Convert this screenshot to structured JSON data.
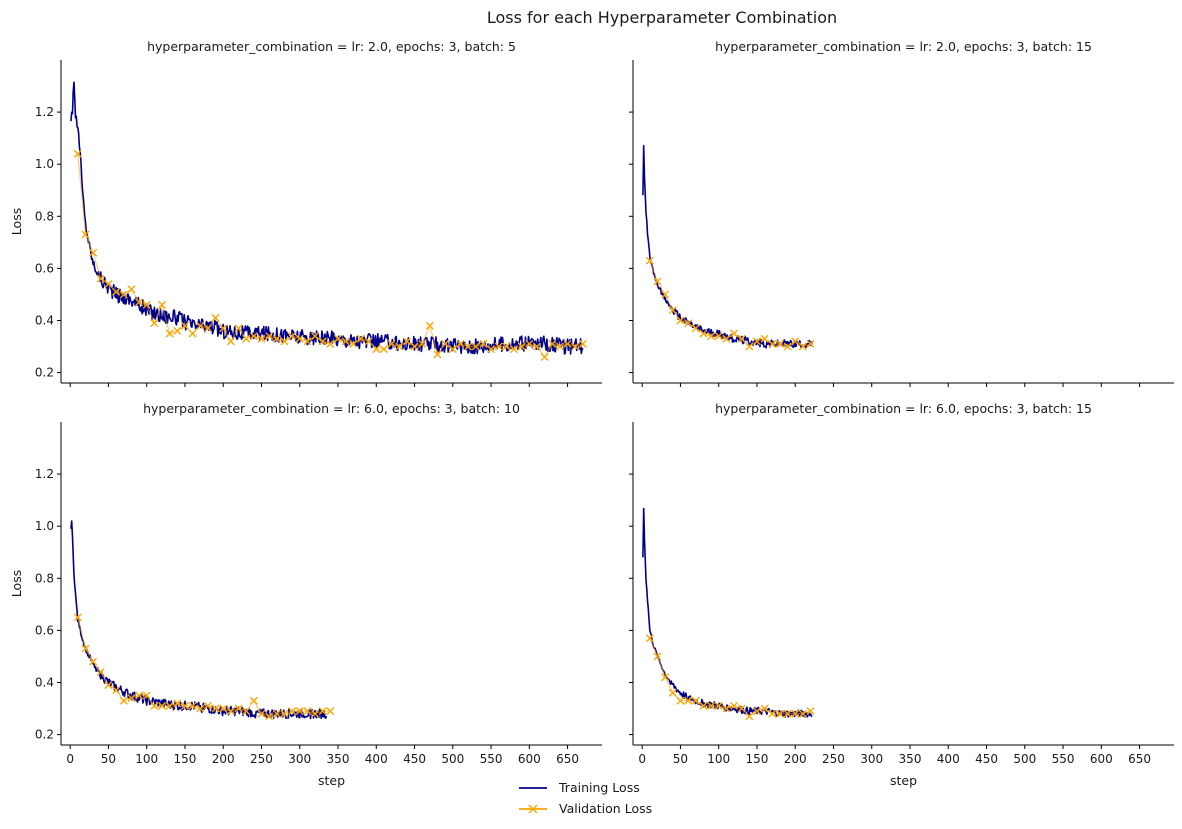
{
  "figure": {
    "title": "Loss for each Hyperparameter Combination",
    "legend": {
      "placement": "bottom-center",
      "entries": [
        {
          "label": "Training Loss",
          "color": "#00008b",
          "marker": "none"
        },
        {
          "label": "Validation Loss",
          "color": "#ffa500",
          "marker": "x"
        }
      ]
    }
  },
  "chart_data": [
    {
      "type": "line",
      "title": "hyperparameter_combination = lr: 2.0, epochs: 3, batch: 5",
      "xlabel": "",
      "ylabel": "Loss",
      "xlim": [
        -12,
        695
      ],
      "ylim": [
        0.16,
        1.4
      ],
      "xticks": [
        0,
        50,
        100,
        150,
        200,
        250,
        300,
        350,
        400,
        450,
        500,
        550,
        600,
        650
      ],
      "yticks": [
        0.2,
        0.4,
        0.6,
        0.8,
        1.0,
        1.2
      ],
      "show_x_tick_labels": false,
      "show_y_tick_labels": true,
      "grid": false,
      "series": [
        {
          "name": "Training Loss",
          "color": "#00008b",
          "x": [
            1,
            3,
            5,
            7,
            10,
            13,
            16,
            20,
            25,
            30,
            40,
            50,
            60,
            70,
            80,
            90,
            100,
            120,
            140,
            160,
            180,
            200,
            230,
            260,
            290,
            320,
            350,
            380,
            410,
            440,
            470,
            500,
            530,
            560,
            590,
            620,
            650,
            670
          ],
          "y": [
            1.18,
            1.21,
            1.33,
            1.18,
            1.14,
            1.05,
            0.9,
            0.77,
            0.69,
            0.62,
            0.56,
            0.53,
            0.5,
            0.49,
            0.48,
            0.46,
            0.44,
            0.42,
            0.41,
            0.38,
            0.38,
            0.36,
            0.35,
            0.35,
            0.34,
            0.33,
            0.33,
            0.32,
            0.32,
            0.31,
            0.31,
            0.3,
            0.3,
            0.31,
            0.31,
            0.31,
            0.3,
            0.3
          ],
          "noise": 0.03
        },
        {
          "name": "Validation Loss",
          "color": "#ffa500",
          "x": [
            10,
            20,
            30,
            40,
            50,
            60,
            70,
            80,
            90,
            100,
            110,
            120,
            130,
            140,
            150,
            160,
            170,
            180,
            190,
            200,
            210,
            220,
            230,
            240,
            250,
            260,
            270,
            280,
            290,
            300,
            310,
            320,
            330,
            340,
            350,
            360,
            370,
            380,
            390,
            400,
            410,
            420,
            430,
            440,
            450,
            460,
            470,
            480,
            490,
            500,
            510,
            520,
            530,
            540,
            550,
            560,
            570,
            580,
            590,
            600,
            610,
            620,
            630,
            640,
            650,
            660,
            670
          ],
          "y": [
            1.04,
            0.73,
            0.66,
            0.56,
            0.54,
            0.51,
            0.5,
            0.52,
            0.47,
            0.46,
            0.39,
            0.46,
            0.35,
            0.36,
            0.38,
            0.35,
            0.38,
            0.37,
            0.41,
            0.37,
            0.32,
            0.37,
            0.33,
            0.34,
            0.33,
            0.34,
            0.33,
            0.32,
            0.34,
            0.33,
            0.32,
            0.34,
            0.32,
            0.31,
            0.33,
            0.32,
            0.31,
            0.33,
            0.32,
            0.29,
            0.29,
            0.31,
            0.3,
            0.32,
            0.3,
            0.31,
            0.38,
            0.27,
            0.31,
            0.29,
            0.31,
            0.3,
            0.3,
            0.31,
            0.29,
            0.3,
            0.3,
            0.29,
            0.3,
            0.31,
            0.3,
            0.26,
            0.31,
            0.3,
            0.31,
            0.3,
            0.31
          ]
        }
      ]
    },
    {
      "type": "line",
      "title": "hyperparameter_combination = lr: 2.0, epochs: 3, batch: 15",
      "xlabel": "",
      "ylabel": "",
      "xlim": [
        -12,
        695
      ],
      "ylim": [
        0.16,
        1.4
      ],
      "xticks": [
        0,
        50,
        100,
        150,
        200,
        250,
        300,
        350,
        400,
        450,
        500,
        550,
        600,
        650
      ],
      "yticks": [
        0.2,
        0.4,
        0.6,
        0.8,
        1.0,
        1.2
      ],
      "show_x_tick_labels": false,
      "show_y_tick_labels": false,
      "grid": false,
      "series": [
        {
          "name": "Training Loss",
          "color": "#00008b",
          "x": [
            1,
            2,
            3,
            5,
            8,
            10,
            15,
            20,
            30,
            40,
            50,
            60,
            80,
            100,
            120,
            140,
            160,
            180,
            200,
            222
          ],
          "y": [
            0.88,
            1.07,
            0.95,
            0.82,
            0.7,
            0.64,
            0.58,
            0.54,
            0.48,
            0.44,
            0.41,
            0.39,
            0.36,
            0.35,
            0.33,
            0.32,
            0.31,
            0.31,
            0.31,
            0.31
          ],
          "noise": 0.015
        },
        {
          "name": "Validation Loss",
          "color": "#ffa500",
          "x": [
            10,
            20,
            30,
            40,
            50,
            60,
            70,
            80,
            90,
            100,
            110,
            120,
            130,
            140,
            150,
            160,
            170,
            180,
            190,
            200,
            210,
            220
          ],
          "y": [
            0.63,
            0.55,
            0.5,
            0.44,
            0.4,
            0.39,
            0.37,
            0.35,
            0.34,
            0.34,
            0.33,
            0.35,
            0.33,
            0.3,
            0.32,
            0.33,
            0.31,
            0.31,
            0.3,
            0.32,
            0.3,
            0.31
          ]
        }
      ]
    },
    {
      "type": "line",
      "title": "hyperparameter_combination = lr: 6.0, epochs: 3, batch: 10",
      "xlabel": "step",
      "ylabel": "Loss",
      "xlim": [
        -12,
        695
      ],
      "ylim": [
        0.16,
        1.4
      ],
      "xticks": [
        0,
        50,
        100,
        150,
        200,
        250,
        300,
        350,
        400,
        450,
        500,
        550,
        600,
        650
      ],
      "yticks": [
        0.2,
        0.4,
        0.6,
        0.8,
        1.0,
        1.2
      ],
      "show_x_tick_labels": true,
      "show_y_tick_labels": true,
      "grid": false,
      "series": [
        {
          "name": "Training Loss",
          "color": "#00008b",
          "x": [
            1,
            2,
            3,
            5,
            8,
            10,
            15,
            20,
            30,
            40,
            50,
            60,
            80,
            100,
            120,
            140,
            160,
            180,
            200,
            220,
            250,
            280,
            300,
            320,
            335
          ],
          "y": [
            1.0,
            1.02,
            0.95,
            0.82,
            0.7,
            0.64,
            0.58,
            0.53,
            0.47,
            0.43,
            0.4,
            0.38,
            0.35,
            0.33,
            0.32,
            0.31,
            0.31,
            0.3,
            0.29,
            0.29,
            0.28,
            0.28,
            0.28,
            0.28,
            0.28
          ],
          "noise": 0.018
        },
        {
          "name": "Validation Loss",
          "color": "#ffa500",
          "x": [
            10,
            20,
            30,
            40,
            50,
            60,
            70,
            80,
            90,
            100,
            110,
            120,
            130,
            140,
            150,
            160,
            170,
            180,
            190,
            200,
            210,
            220,
            230,
            240,
            250,
            260,
            270,
            280,
            290,
            300,
            310,
            320,
            330,
            340
          ],
          "y": [
            0.65,
            0.53,
            0.48,
            0.44,
            0.39,
            0.37,
            0.33,
            0.34,
            0.35,
            0.35,
            0.31,
            0.31,
            0.31,
            0.32,
            0.31,
            0.31,
            0.3,
            0.31,
            0.3,
            0.3,
            0.29,
            0.3,
            0.29,
            0.33,
            0.28,
            0.27,
            0.28,
            0.28,
            0.29,
            0.29,
            0.29,
            0.28,
            0.29,
            0.29
          ]
        }
      ]
    },
    {
      "type": "line",
      "title": "hyperparameter_combination = lr: 6.0, epochs: 3, batch: 15",
      "xlabel": "step",
      "ylabel": "",
      "xlim": [
        -12,
        695
      ],
      "ylim": [
        0.16,
        1.4
      ],
      "xticks": [
        0,
        50,
        100,
        150,
        200,
        250,
        300,
        350,
        400,
        450,
        500,
        550,
        600,
        650
      ],
      "yticks": [
        0.2,
        0.4,
        0.6,
        0.8,
        1.0,
        1.2
      ],
      "show_x_tick_labels": true,
      "show_y_tick_labels": false,
      "grid": false,
      "series": [
        {
          "name": "Training Loss",
          "color": "#00008b",
          "x": [
            1,
            2,
            3,
            5,
            8,
            10,
            15,
            20,
            30,
            40,
            50,
            60,
            80,
            100,
            120,
            140,
            160,
            180,
            200,
            222
          ],
          "y": [
            0.88,
            1.07,
            0.95,
            0.8,
            0.68,
            0.6,
            0.54,
            0.5,
            0.43,
            0.39,
            0.36,
            0.34,
            0.32,
            0.31,
            0.3,
            0.29,
            0.29,
            0.28,
            0.28,
            0.28
          ],
          "noise": 0.014
        },
        {
          "name": "Validation Loss",
          "color": "#ffa500",
          "x": [
            10,
            20,
            30,
            40,
            50,
            60,
            70,
            80,
            90,
            100,
            110,
            120,
            130,
            140,
            150,
            160,
            170,
            180,
            190,
            200,
            210,
            220
          ],
          "y": [
            0.57,
            0.5,
            0.42,
            0.36,
            0.33,
            0.33,
            0.33,
            0.31,
            0.31,
            0.31,
            0.3,
            0.31,
            0.3,
            0.27,
            0.29,
            0.3,
            0.28,
            0.28,
            0.28,
            0.28,
            0.28,
            0.29
          ]
        }
      ]
    }
  ]
}
